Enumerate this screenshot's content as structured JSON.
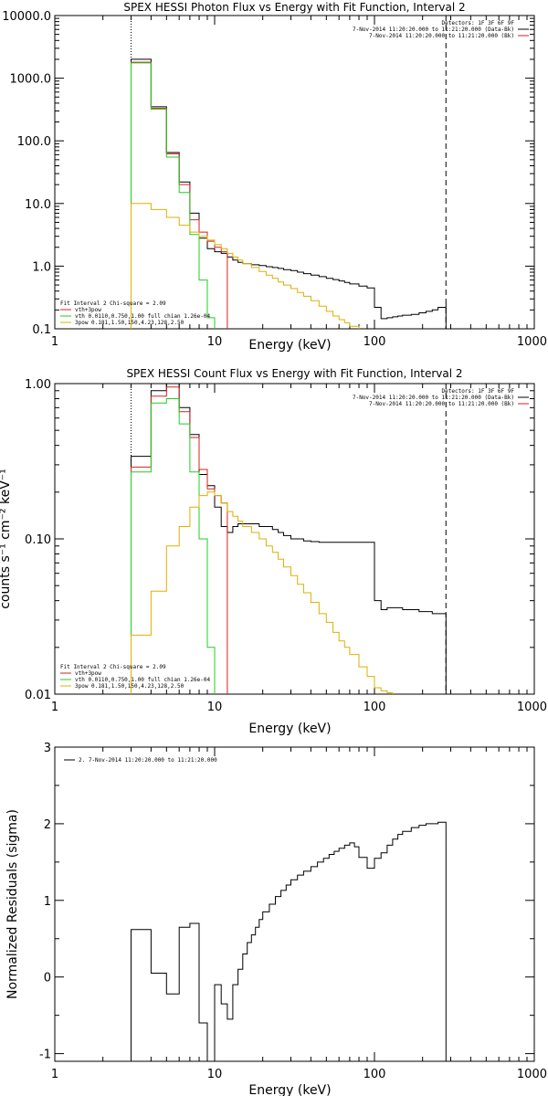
{
  "chart_data": [
    {
      "type": "line",
      "title": "SPEX HESSI Photon Flux vs Energy with Fit Function, Interval 2",
      "xlabel": "Energy (keV)",
      "ylabel": "",
      "xscale": "log",
      "yscale": "log",
      "xlim": [
        1,
        1000
      ],
      "ylim": [
        0.1,
        10000
      ],
      "x_ticks": [
        "1",
        "10",
        "100",
        "1000"
      ],
      "y_ticks": [
        "0.1",
        "1.0",
        "10.0",
        "100.0",
        "1000.0",
        "10000.0"
      ],
      "y_tick_values": [
        0.1,
        1,
        10,
        100,
        1000,
        10000
      ],
      "legend_top_right": [
        "Detectors: 1F 3F 6F 9F",
        "7-Nov-2014 11:20:20.000 to 11:21:20.000 (Data-Bk)",
        "7-Nov-2014 11:20:20.000 to 11:21:20.000 (Bk)"
      ],
      "legend_bottom_left": [
        "Fit Interval 2   Chi-square = 2.09",
        "vth+3pow",
        "vth 0.0110,0.750,1.00  full chian 1.26e-04",
        "3pow 0.181,1.50,150,4.23,128,2.50"
      ],
      "vlines": {
        "dotted_x": 3,
        "dashed_x": 280
      },
      "series": [
        {
          "color": "#000000",
          "x": [
            3,
            4,
            5,
            6,
            7,
            8,
            9,
            10,
            11,
            12,
            13,
            14,
            15,
            17,
            19,
            21,
            23,
            25,
            27,
            30,
            33,
            36,
            40,
            45,
            50,
            55,
            60,
            65,
            70,
            80,
            90,
            100,
            110,
            120,
            130,
            140,
            150,
            170,
            190,
            210,
            230,
            250,
            280
          ],
          "y": [
            2000,
            350,
            65,
            22,
            7,
            2.8,
            1.9,
            1.7,
            1.6,
            1.4,
            1.25,
            1.15,
            1.1,
            1.05,
            1.02,
            0.98,
            0.95,
            0.92,
            0.88,
            0.85,
            0.8,
            0.76,
            0.72,
            0.68,
            0.64,
            0.61,
            0.58,
            0.55,
            0.52,
            0.48,
            0.45,
            0.22,
            0.145,
            0.15,
            0.155,
            0.16,
            0.165,
            0.17,
            0.18,
            0.19,
            0.2,
            0.22,
            0.25
          ]
        },
        {
          "color": "#d62020",
          "x": [
            3,
            4,
            5,
            6,
            7,
            8,
            9,
            10,
            11,
            12
          ],
          "y": [
            1800,
            330,
            62,
            20,
            5.5,
            3.5,
            2.5,
            2.0,
            1.7,
            1.5
          ]
        },
        {
          "color": "#22cc22",
          "x": [
            3,
            4,
            5,
            6,
            7,
            8,
            9,
            10
          ],
          "y": [
            1750,
            320,
            55,
            15,
            3.2,
            0.6,
            0.15,
            0.1
          ]
        },
        {
          "color": "#ddb000",
          "x": [
            3,
            4,
            5,
            6,
            7,
            8,
            9,
            10,
            11,
            12,
            13,
            14,
            15,
            17,
            19,
            21,
            23,
            25,
            27,
            30,
            33,
            36,
            40,
            45,
            50,
            55,
            60,
            65,
            70,
            80
          ],
          "y": [
            10,
            8,
            6,
            4.5,
            3.5,
            3.0,
            2.6,
            2.2,
            1.9,
            1.6,
            1.4,
            1.25,
            1.1,
            0.95,
            0.82,
            0.72,
            0.64,
            0.56,
            0.5,
            0.44,
            0.38,
            0.33,
            0.28,
            0.23,
            0.19,
            0.16,
            0.14,
            0.125,
            0.11,
            0.1
          ]
        }
      ]
    },
    {
      "type": "line",
      "title": "SPEX HESSI Count Flux vs Energy with Fit Function, Interval 2",
      "xlabel": "Energy (keV)",
      "ylabel": "counts s⁻¹ cm⁻² keV⁻¹",
      "xscale": "log",
      "yscale": "log",
      "xlim": [
        1,
        1000
      ],
      "ylim": [
        0.01,
        1
      ],
      "x_ticks": [
        "1",
        "10",
        "100",
        "1000"
      ],
      "y_ticks": [
        "0.01",
        "0.10",
        "1.00"
      ],
      "y_tick_values": [
        0.01,
        0.1,
        1
      ],
      "legend_top_right": [
        "Detectors: 1F 3F 6F 9F",
        "7-Nov-2014 11:20:20.000 to 11:21:20.000 (Data-Bk)",
        "7-Nov-2014 11:20:20.000 to 11:21:20.000 (Bk)"
      ],
      "legend_bottom_left": [
        "Fit Interval 2   Chi-square = 2.09",
        "vth+3pow",
        "vth 0.0110,0.750,1.00  full chian 1.26e-04",
        "3pow 0.181,1.50,150,4.23,128,2.50"
      ],
      "vlines": {
        "dotted_x": 3,
        "dashed_x": 280
      },
      "series": [
        {
          "color": "#000000",
          "x": [
            3,
            4,
            5,
            6,
            7,
            8,
            9,
            10,
            11,
            12,
            13,
            14,
            15,
            17,
            19,
            21,
            23,
            25,
            27,
            30,
            33,
            36,
            40,
            45,
            50,
            55,
            60,
            65,
            70,
            80,
            90,
            100,
            110,
            120,
            130,
            140,
            150,
            170,
            190,
            210,
            230,
            250,
            280
          ],
          "y": [
            0.34,
            0.9,
            1.0,
            0.7,
            0.47,
            0.26,
            0.22,
            0.16,
            0.12,
            0.11,
            0.12,
            0.125,
            0.125,
            0.125,
            0.12,
            0.12,
            0.115,
            0.11,
            0.105,
            0.1,
            0.1,
            0.097,
            0.096,
            0.095,
            0.095,
            0.095,
            0.095,
            0.095,
            0.095,
            0.095,
            0.095,
            0.04,
            0.035,
            0.036,
            0.036,
            0.036,
            0.035,
            0.035,
            0.034,
            0.034,
            0.033,
            0.033,
            0.033
          ]
        },
        {
          "color": "#d62020",
          "x": [
            3,
            4,
            5,
            6,
            7,
            8,
            9,
            10,
            11,
            12
          ],
          "y": [
            0.29,
            0.83,
            0.95,
            0.66,
            0.45,
            0.28,
            0.21,
            0.19,
            0.17,
            0.15
          ]
        },
        {
          "color": "#22cc22",
          "x": [
            3,
            4,
            5,
            6,
            7,
            8,
            9,
            10
          ],
          "y": [
            0.27,
            0.75,
            0.8,
            0.55,
            0.27,
            0.1,
            0.02,
            0.01
          ]
        },
        {
          "color": "#ddb000",
          "x": [
            3,
            4,
            5,
            6,
            7,
            8,
            9,
            10,
            11,
            12,
            13,
            14,
            15,
            17,
            19,
            21,
            23,
            25,
            27,
            30,
            33,
            36,
            40,
            45,
            50,
            55,
            60,
            65,
            70,
            80,
            90,
            100,
            110,
            120,
            130
          ],
          "y": [
            0.024,
            0.046,
            0.09,
            0.12,
            0.16,
            0.19,
            0.2,
            0.19,
            0.17,
            0.15,
            0.14,
            0.13,
            0.12,
            0.11,
            0.1,
            0.09,
            0.082,
            0.074,
            0.066,
            0.058,
            0.051,
            0.045,
            0.039,
            0.033,
            0.029,
            0.025,
            0.022,
            0.02,
            0.018,
            0.015,
            0.013,
            0.011,
            0.0105,
            0.0102,
            0.01
          ]
        }
      ]
    },
    {
      "type": "line",
      "title": "",
      "xlabel": "Energy (keV)",
      "ylabel": "Normalized Residuals (sigma)",
      "xscale": "log",
      "yscale": "linear",
      "xlim": [
        1,
        1000
      ],
      "ylim": [
        -1.1,
        3
      ],
      "x_ticks": [
        "1",
        "10",
        "100",
        "1000"
      ],
      "y_ticks": [
        "-1",
        "0",
        "1",
        "2",
        "3"
      ],
      "y_tick_values": [
        -1,
        0,
        1,
        2,
        3
      ],
      "legend_top_left": [
        "2.  7-Nov-2014 11:20:20.000 to 11:21:20.000"
      ],
      "series": [
        {
          "color": "#000000",
          "x": [
            3,
            4,
            5,
            6,
            7,
            8,
            9,
            10,
            11,
            12,
            13,
            14,
            15,
            16,
            17,
            18,
            19,
            20,
            22,
            24,
            26,
            28,
            30,
            33,
            36,
            40,
            44,
            48,
            52,
            56,
            60,
            65,
            70,
            75,
            80,
            90,
            100,
            110,
            120,
            130,
            140,
            150,
            170,
            190,
            210,
            230,
            250,
            280
          ],
          "y": [
            0.62,
            0.05,
            -0.22,
            0.65,
            0.7,
            -0.6,
            -1.1,
            -0.1,
            -0.35,
            -0.55,
            -0.1,
            0.1,
            0.3,
            0.45,
            0.55,
            0.65,
            0.75,
            0.85,
            0.95,
            1.05,
            1.13,
            1.2,
            1.27,
            1.33,
            1.38,
            1.44,
            1.5,
            1.55,
            1.6,
            1.64,
            1.68,
            1.72,
            1.75,
            1.7,
            1.56,
            1.42,
            1.55,
            1.62,
            1.72,
            1.8,
            1.86,
            1.9,
            1.95,
            1.98,
            2.0,
            2.0,
            2.02,
            2.0
          ]
        }
      ]
    }
  ]
}
